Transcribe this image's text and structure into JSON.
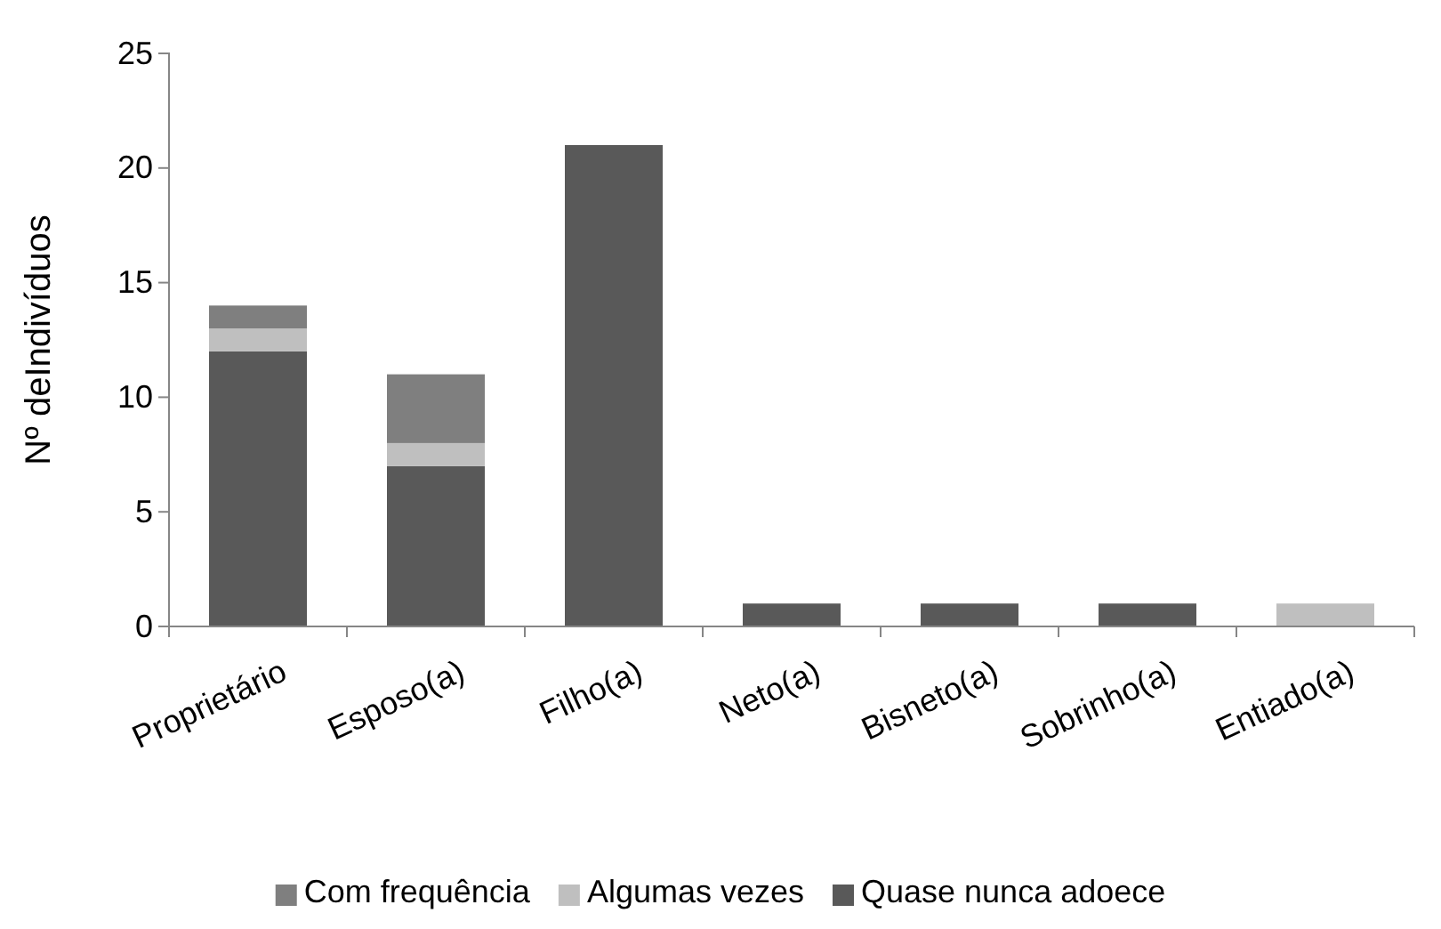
{
  "chart_data": {
    "type": "bar",
    "stacked": true,
    "ylabel": "Nº deIndivíduos",
    "categories": [
      "Proprietário",
      "Esposo(a)",
      "Filho(a)",
      "Neto(a)",
      "Bisneto(a)",
      "Sobrinho(a)",
      "Entiado(a)"
    ],
    "series": [
      {
        "name": "Quase nunca adoece",
        "color": "#595959",
        "values": [
          12,
          7,
          21,
          1,
          1,
          1,
          0
        ]
      },
      {
        "name": "Algumas vezes",
        "color": "#bfbfbf",
        "values": [
          1,
          1,
          0,
          0,
          0,
          0,
          1
        ]
      },
      {
        "name": "Com frequência",
        "color": "#7f7f7f",
        "values": [
          1,
          3,
          0,
          0,
          0,
          0,
          0
        ]
      }
    ],
    "ylim": [
      0,
      25
    ],
    "yticks": [
      0,
      5,
      10,
      15,
      20,
      25
    ],
    "grid": false,
    "legend": "bottom"
  }
}
